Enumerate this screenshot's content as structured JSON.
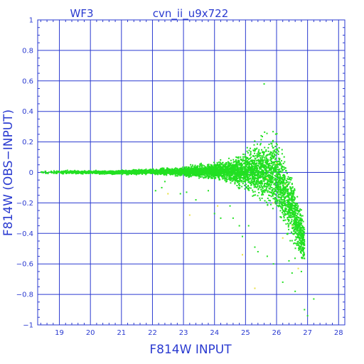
{
  "chart_data": {
    "type": "scatter",
    "panel_label": "WF3",
    "title": "cvn_ii_u9x722",
    "xlabel": "F814W INPUT",
    "ylabel": "F814W (OBS−INPUT)",
    "xlim": [
      18.3,
      28.2
    ],
    "ylim": [
      -1,
      1
    ],
    "x_ticks": [
      "19",
      "20",
      "21",
      "22",
      "23",
      "24",
      "25",
      "26",
      "27",
      "28"
    ],
    "y_ticks": [
      "1",
      "0.8",
      "0.6",
      "0.4",
      "0.2",
      "0",
      "−0.2",
      "−0.4",
      "−0.6",
      "−0.8",
      "−1"
    ],
    "grid": true,
    "colors": {
      "axes": "#2a3ad0",
      "points": "#22e022",
      "outliers": "#e8e040"
    },
    "series": [
      {
        "color": "#22e022",
        "envelope": [
          {
            "x": 18.4,
            "y_low": -0.015,
            "y_high": 0.02
          },
          {
            "x": 19.0,
            "y_low": -0.015,
            "y_high": 0.02
          },
          {
            "x": 20.0,
            "y_low": -0.015,
            "y_high": 0.015
          },
          {
            "x": 21.0,
            "y_low": -0.02,
            "y_high": 0.02
          },
          {
            "x": 22.0,
            "y_low": -0.02,
            "y_high": 0.03
          },
          {
            "x": 23.0,
            "y_low": -0.04,
            "y_high": 0.05
          },
          {
            "x": 24.0,
            "y_low": -0.07,
            "y_high": 0.09
          },
          {
            "x": 24.5,
            "y_low": -0.1,
            "y_high": 0.12
          },
          {
            "x": 25.0,
            "y_low": -0.18,
            "y_high": 0.2
          },
          {
            "x": 25.5,
            "y_low": -0.28,
            "y_high": 0.3
          },
          {
            "x": 26.0,
            "y_low": -0.38,
            "y_high": 0.35
          },
          {
            "x": 26.3,
            "y_low": -0.5,
            "y_high": 0.2
          },
          {
            "x": 26.6,
            "y_low": -0.62,
            "y_high": 0.05
          },
          {
            "x": 26.9,
            "y_low": -0.7,
            "y_high": -0.25
          }
        ],
        "points": [
          [
            22.1,
            -0.12
          ],
          [
            22.3,
            -0.1
          ],
          [
            22.4,
            -0.06
          ],
          [
            22.9,
            -0.14
          ],
          [
            23.1,
            -0.13
          ],
          [
            23.4,
            -0.18
          ],
          [
            23.8,
            -0.12
          ],
          [
            24.0,
            -0.27
          ],
          [
            24.2,
            -0.3
          ],
          [
            24.5,
            -0.22
          ],
          [
            24.6,
            -0.3
          ],
          [
            24.8,
            -0.35
          ],
          [
            24.9,
            -0.42
          ],
          [
            25.1,
            -0.35
          ],
          [
            25.3,
            -0.49
          ],
          [
            25.4,
            -0.52
          ],
          [
            25.6,
            0.58
          ],
          [
            25.7,
            -0.55
          ],
          [
            25.9,
            -0.6
          ],
          [
            26.2,
            -0.72
          ],
          [
            26.4,
            -0.58
          ],
          [
            26.6,
            -0.78
          ],
          [
            26.8,
            -0.65
          ],
          [
            26.9,
            -0.9
          ],
          [
            27.0,
            -0.94
          ],
          [
            27.2,
            -0.83
          ],
          [
            26.7,
            -0.47
          ],
          [
            26.5,
            -0.66
          ]
        ]
      },
      {
        "color": "#e8e040",
        "points": [
          [
            22.5,
            -0.14
          ],
          [
            23.2,
            -0.28
          ],
          [
            24.1,
            -0.22
          ],
          [
            24.9,
            -0.54
          ],
          [
            25.3,
            -0.76
          ],
          [
            25.7,
            -0.04
          ],
          [
            26.0,
            0.06
          ],
          [
            26.3,
            -0.08
          ],
          [
            26.5,
            -0.35
          ],
          [
            26.7,
            -0.63
          ],
          [
            26.2,
            -0.43
          ],
          [
            25.9,
            -0.2
          ]
        ]
      }
    ]
  }
}
